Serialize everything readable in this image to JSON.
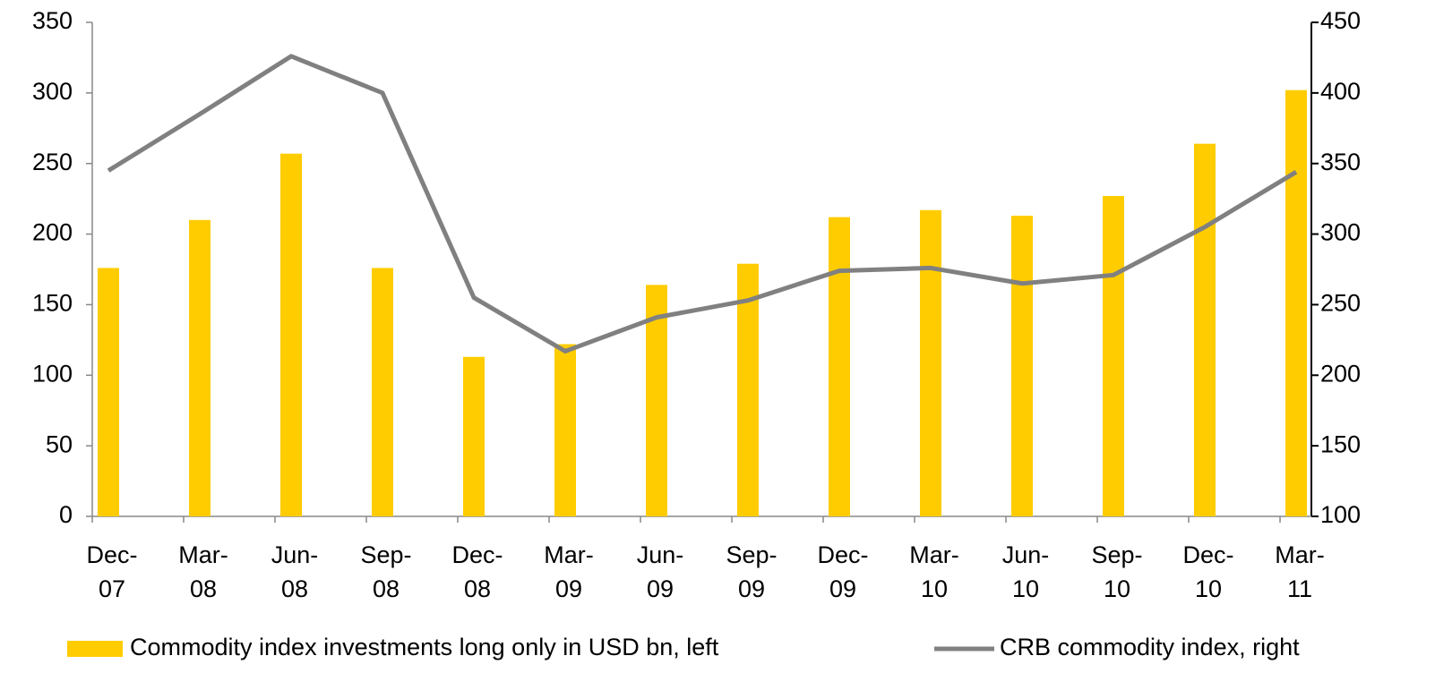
{
  "chart_data": {
    "type": "bar_line",
    "categories": [
      "Dec-07",
      "Mar-08",
      "Jun-08",
      "Sep-08",
      "Dec-08",
      "Mar-09",
      "Jun-09",
      "Sep-09",
      "Dec-09",
      "Mar-10",
      "Jun-10",
      "Sep-10",
      "Dec-10",
      "Mar-11"
    ],
    "series": [
      {
        "name": "Commodity index investments long only in USD bn, left",
        "color": "#ffcc00",
        "type": "bar",
        "values": [
          176,
          210,
          257,
          176,
          113,
          122,
          164,
          179,
          212,
          217,
          213,
          227,
          264,
          302
        ]
      },
      {
        "name": "CRB commodity index, right",
        "color": "#808080",
        "type": "line",
        "axis": "y2",
        "values": [
          345,
          385,
          426,
          400,
          255,
          217,
          241,
          253,
          274,
          276,
          265,
          271,
          305,
          344
        ]
      }
    ],
    "ylim": [
      0,
      350
    ],
    "yticks": [
      0,
      50,
      100,
      150,
      200,
      250,
      300,
      350
    ],
    "y2lim": [
      100,
      450
    ],
    "y2ticks": [
      100,
      150,
      200,
      250,
      300,
      350,
      400,
      450
    ],
    "legend": "bottom"
  }
}
